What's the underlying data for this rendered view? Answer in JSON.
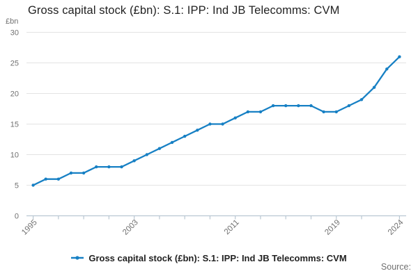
{
  "title": "Gross capital stock (£bn): S.1: IPP: Ind JB Telecomms: CVM",
  "y_axis_unit_label": "£bn",
  "legend": {
    "marker": "line-with-dot",
    "label": "Gross capital stock (£bn): S.1: IPP: Ind JB Telecomms: CVM"
  },
  "source_label": "Source:",
  "colors": {
    "line": "#1780c4",
    "grid": "#e3e3e3",
    "axis": "#b9c7d2",
    "tick_label": "#707070",
    "title_text": "#222222",
    "legend_text": "#222222"
  },
  "chart_data": {
    "type": "line",
    "title": "Gross capital stock (£bn): S.1: IPP: Ind JB Telecomms: CVM",
    "xlabel": "",
    "ylabel": "£bn",
    "ylim": [
      0,
      30
    ],
    "grid": "horizontal-only",
    "legend_position": "bottom-center",
    "y_ticks": [
      0,
      5,
      10,
      15,
      20,
      25,
      30
    ],
    "x_ticks": [
      1995,
      1997,
      1999,
      2001,
      2003,
      2005,
      2007,
      2009,
      2011,
      2013,
      2015,
      2017,
      2019,
      2021,
      2024
    ],
    "x_tick_labels": [
      1995,
      2003,
      2011,
      2019,
      2024
    ],
    "x": [
      1995,
      1996,
      1997,
      1998,
      1999,
      2000,
      2001,
      2002,
      2003,
      2004,
      2005,
      2006,
      2007,
      2008,
      2009,
      2010,
      2011,
      2012,
      2013,
      2014,
      2015,
      2016,
      2017,
      2018,
      2019,
      2020,
      2021,
      2022,
      2023,
      2024
    ],
    "series": [
      {
        "name": "Gross capital stock (£bn): S.1: IPP: Ind JB Telecomms: CVM",
        "values": [
          5,
          6,
          6,
          7,
          7,
          8,
          8,
          8,
          9,
          10,
          11,
          12,
          13,
          14,
          15,
          15,
          16,
          17,
          17,
          18,
          18,
          18,
          18,
          17,
          17,
          18,
          19,
          21,
          24,
          26
        ]
      }
    ]
  }
}
